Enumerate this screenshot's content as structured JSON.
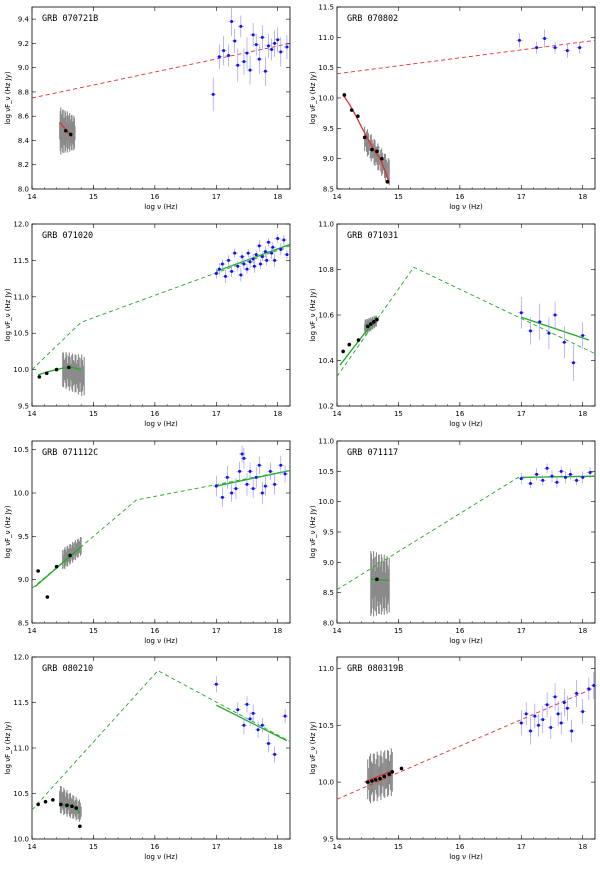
{
  "figure": {
    "xlabel": "log ν (Hz)",
    "ylabel": "log νF_ν (Hz Jy)",
    "colors": {
      "xray": "#1010ee",
      "optical": "#000000",
      "spectrum": "#8a8a8a",
      "fit_red": "#e03030",
      "fit_green": "#22aa22",
      "frame": "#000000"
    }
  },
  "chart_data": [
    {
      "type": "scatter",
      "title": "GRB 070721B",
      "fit_color": "red",
      "xlim": [
        14,
        18.2
      ],
      "ylim": [
        8.0,
        9.5
      ],
      "xticks": [
        14,
        15,
        16,
        17,
        18
      ],
      "xtick_labels": [
        "14",
        "15",
        "16",
        "17",
        "18"
      ],
      "yticks": [
        8.0,
        8.2,
        8.4,
        8.6,
        8.8,
        9.0,
        9.2,
        9.4
      ],
      "ytick_labels": [
        "8.0",
        "8.2",
        "8.4",
        "8.6",
        "8.8",
        "9.0",
        "9.2",
        "9.4"
      ],
      "model": {
        "x": [
          14,
          18.2
        ],
        "y": [
          8.75,
          9.2
        ]
      },
      "fit_segments": [
        {
          "x": [
            14.45,
            14.65
          ],
          "y": [
            8.55,
            8.43
          ]
        }
      ],
      "spectrum": {
        "x": [
          14.45,
          14.7
        ],
        "ylow": [
          8.28,
          8.32
        ],
        "yhigh": [
          8.68,
          8.6
        ]
      },
      "optical": {
        "x": [
          14.55,
          14.63
        ],
        "y": [
          8.48,
          8.45
        ]
      },
      "xray": {
        "x": [
          16.95,
          17.05,
          17.12,
          17.2,
          17.25,
          17.3,
          17.35,
          17.4,
          17.45,
          17.5,
          17.55,
          17.6,
          17.65,
          17.7,
          17.75,
          17.8,
          17.85,
          17.9,
          17.95,
          18.0,
          18.05,
          18.15
        ],
        "y": [
          8.78,
          9.09,
          9.14,
          9.1,
          9.38,
          9.22,
          9.02,
          9.34,
          9.05,
          9.12,
          8.98,
          9.27,
          9.19,
          9.07,
          9.25,
          8.97,
          9.18,
          9.15,
          9.2,
          9.23,
          9.13,
          9.17
        ],
        "err": [
          0.14,
          0.1,
          0.12,
          0.09,
          0.12,
          0.1,
          0.14,
          0.09,
          0.11,
          0.13,
          0.12,
          0.1,
          0.09,
          0.12,
          0.1,
          0.12,
          0.1,
          0.09,
          0.11,
          0.1,
          0.12,
          0.1
        ]
      }
    },
    {
      "type": "scatter",
      "title": "GRB 070802",
      "fit_color": "red",
      "xlim": [
        14,
        18.2
      ],
      "ylim": [
        8.5,
        11.5
      ],
      "xticks": [
        14,
        15,
        16,
        17,
        18
      ],
      "xtick_labels": [
        "14",
        "15",
        "16",
        "17",
        "18"
      ],
      "yticks": [
        8.5,
        9.0,
        9.5,
        10.0,
        10.5,
        11.0,
        11.5
      ],
      "ytick_labels": [
        "8.5",
        "9.0",
        "9.5",
        "10.0",
        "10.5",
        "11.0",
        "11.5"
      ],
      "model": {
        "x": [
          14,
          18.2
        ],
        "y": [
          10.4,
          10.95
        ]
      },
      "fit_segments": [
        {
          "x": [
            14.1,
            14.2,
            14.3,
            14.4,
            14.5,
            14.6,
            14.7,
            14.8,
            14.85
          ],
          "y": [
            10.05,
            9.9,
            9.72,
            9.52,
            9.33,
            9.15,
            9.0,
            8.75,
            8.6
          ]
        }
      ],
      "spectrum": {
        "x": [
          14.45,
          14.85
        ],
        "ylow": [
          9.1,
          8.55
        ],
        "yhigh": [
          9.55,
          9.0
        ]
      },
      "optical": {
        "x": [
          14.12,
          14.24,
          14.34,
          14.45,
          14.57,
          14.65,
          14.73,
          14.82
        ],
        "y": [
          10.05,
          9.8,
          9.7,
          9.35,
          9.15,
          9.12,
          9.0,
          8.62
        ]
      },
      "xray": {
        "x": [
          16.97,
          17.25,
          17.38,
          17.55,
          17.75,
          17.95
        ],
        "y": [
          10.95,
          10.83,
          10.98,
          10.83,
          10.78,
          10.83
        ],
        "err": [
          0.12,
          0.1,
          0.15,
          0.1,
          0.12,
          0.1
        ]
      }
    },
    {
      "type": "scatter",
      "title": "GRB 071020",
      "fit_color": "green",
      "xlim": [
        14,
        18.2
      ],
      "ylim": [
        9.5,
        12.0
      ],
      "xticks": [
        14,
        15,
        16,
        17,
        18
      ],
      "xtick_labels": [
        "14",
        "15",
        "16",
        "17",
        "18"
      ],
      "yticks": [
        9.5,
        10.0,
        10.5,
        11.0,
        11.5,
        12.0
      ],
      "ytick_labels": [
        "9.5",
        "10.0",
        "10.5",
        "11.0",
        "11.5",
        "12.0"
      ],
      "model": {
        "x": [
          14,
          14.8,
          18.2
        ],
        "y": [
          10.0,
          10.65,
          11.7
        ]
      },
      "fit_segments": [
        {
          "x": [
            14.1,
            14.3,
            14.5,
            14.65,
            14.8
          ],
          "y": [
            9.93,
            9.98,
            10.02,
            10.03,
            10.0
          ]
        },
        {
          "x": [
            17.0,
            18.2
          ],
          "y": [
            11.35,
            11.72
          ]
        }
      ],
      "spectrum": {
        "x": [
          14.5,
          14.85
        ],
        "ylow": [
          9.75,
          9.62
        ],
        "yhigh": [
          10.25,
          10.2
        ]
      },
      "optical": {
        "x": [
          14.12,
          14.24,
          14.4,
          14.6
        ],
        "y": [
          9.9,
          9.95,
          10.0,
          10.03
        ]
      },
      "xray": {
        "x": [
          17.0,
          17.05,
          17.1,
          17.15,
          17.2,
          17.25,
          17.3,
          17.35,
          17.4,
          17.42,
          17.45,
          17.5,
          17.52,
          17.55,
          17.6,
          17.62,
          17.65,
          17.7,
          17.72,
          17.75,
          17.8,
          17.82,
          17.85,
          17.9,
          17.92,
          17.95,
          18.0,
          18.05,
          18.1,
          18.15
        ],
        "y": [
          11.32,
          11.38,
          11.45,
          11.28,
          11.5,
          11.35,
          11.6,
          11.42,
          11.3,
          11.55,
          11.45,
          11.38,
          11.6,
          11.48,
          11.52,
          11.42,
          11.58,
          11.7,
          11.45,
          11.55,
          11.62,
          11.5,
          11.75,
          11.6,
          11.68,
          11.5,
          11.8,
          11.65,
          11.78,
          11.58
        ],
        "err": [
          0.07,
          0.08,
          0.06,
          0.09,
          0.07,
          0.08,
          0.06,
          0.07,
          0.09,
          0.06,
          0.08,
          0.07,
          0.06,
          0.08,
          0.07,
          0.09,
          0.06,
          0.08,
          0.07,
          0.06,
          0.08,
          0.07,
          0.06,
          0.08,
          0.07,
          0.09,
          0.06,
          0.08,
          0.07,
          0.06
        ]
      }
    },
    {
      "type": "scatter",
      "title": "GRB 071031",
      "fit_color": "green",
      "xlim": [
        14,
        18.2
      ],
      "ylim": [
        10.2,
        11.0
      ],
      "xticks": [
        14,
        15,
        16,
        17,
        18
      ],
      "xtick_labels": [
        "14",
        "15",
        "16",
        "17",
        "18"
      ],
      "yticks": [
        10.2,
        10.4,
        10.6,
        10.8,
        11.0
      ],
      "ytick_labels": [
        "10.2",
        "10.4",
        "10.6",
        "10.8",
        "11.0"
      ],
      "model": {
        "x": [
          14,
          15.25,
          18.2
        ],
        "y": [
          10.33,
          10.81,
          10.43
        ]
      },
      "fit_segments": [
        {
          "x": [
            14.05,
            14.65
          ],
          "y": [
            10.38,
            10.59
          ]
        },
        {
          "x": [
            17.0,
            18.1
          ],
          "y": [
            10.59,
            10.49
          ]
        }
      ],
      "spectrum": {
        "x": [
          14.45,
          14.65
        ],
        "ylow": [
          10.51,
          10.55
        ],
        "yhigh": [
          10.58,
          10.6
        ]
      },
      "optical": {
        "x": [
          14.1,
          14.2,
          14.35,
          14.5,
          14.55,
          14.6,
          14.65
        ],
        "y": [
          10.44,
          10.47,
          10.49,
          10.55,
          10.56,
          10.57,
          10.58
        ]
      },
      "xray": {
        "x": [
          17.0,
          17.15,
          17.3,
          17.45,
          17.55,
          17.7,
          17.85,
          18.0
        ],
        "y": [
          10.61,
          10.53,
          10.57,
          10.52,
          10.6,
          10.48,
          10.39,
          10.51
        ],
        "err": [
          0.07,
          0.06,
          0.08,
          0.07,
          0.06,
          0.07,
          0.08,
          0.06
        ]
      }
    },
    {
      "type": "scatter",
      "title": "GRB 071112C",
      "fit_color": "green",
      "xlim": [
        14,
        18.2
      ],
      "ylim": [
        8.5,
        10.6
      ],
      "xticks": [
        14,
        15,
        16,
        17,
        18
      ],
      "xtick_labels": [
        "14",
        "15",
        "16",
        "17",
        "18"
      ],
      "yticks": [
        8.5,
        9.0,
        9.5,
        10.0,
        10.5
      ],
      "ytick_labels": [
        "8.5",
        "9.0",
        "9.5",
        "10.0",
        "10.5"
      ],
      "model": {
        "x": [
          14,
          15.7,
          18.2
        ],
        "y": [
          8.9,
          9.92,
          10.26
        ]
      },
      "fit_segments": [
        {
          "x": [
            14.05,
            14.8
          ],
          "y": [
            8.92,
            9.38
          ]
        },
        {
          "x": [
            17.0,
            18.2
          ],
          "y": [
            10.08,
            10.26
          ]
        }
      ],
      "spectrum": {
        "x": [
          14.5,
          14.8
        ],
        "ylow": [
          9.1,
          9.28
        ],
        "yhigh": [
          9.36,
          9.5
        ]
      },
      "optical": {
        "x": [
          14.1,
          14.25,
          14.4,
          14.62
        ],
        "y": [
          9.1,
          8.8,
          9.15,
          9.28
        ]
      },
      "xray": {
        "x": [
          17.0,
          17.1,
          17.18,
          17.25,
          17.32,
          17.38,
          17.42,
          17.45,
          17.5,
          17.55,
          17.6,
          17.65,
          17.7,
          17.75,
          17.8,
          17.88,
          17.95,
          18.05,
          18.12
        ],
        "y": [
          10.08,
          9.95,
          10.18,
          10.0,
          10.05,
          10.25,
          10.45,
          10.4,
          10.1,
          10.25,
          10.05,
          10.18,
          10.32,
          10.0,
          10.08,
          10.25,
          10.1,
          10.32,
          10.22
        ],
        "err": [
          0.12,
          0.11,
          0.13,
          0.1,
          0.12,
          0.11,
          0.1,
          0.12,
          0.13,
          0.1,
          0.11,
          0.12,
          0.1,
          0.13,
          0.11,
          0.1,
          0.12,
          0.11,
          0.1
        ]
      }
    },
    {
      "type": "scatter",
      "title": "GRB 071117",
      "fit_color": "green",
      "xlim": [
        14,
        18.2
      ],
      "ylim": [
        8.0,
        11.0
      ],
      "xticks": [
        14,
        15,
        16,
        17,
        18
      ],
      "xtick_labels": [
        "14",
        "15",
        "16",
        "17",
        "18"
      ],
      "yticks": [
        8.0,
        8.5,
        9.0,
        9.5,
        10.0,
        10.5,
        11.0
      ],
      "ytick_labels": [
        "8.0",
        "8.5",
        "9.0",
        "9.5",
        "10.0",
        "10.5",
        "11.0"
      ],
      "model": {
        "x": [
          14,
          16.95,
          18.2
        ],
        "y": [
          8.55,
          10.4,
          10.42
        ]
      },
      "fit_segments": [
        {
          "x": [
            14.55,
            14.85
          ],
          "y": [
            8.72,
            8.7
          ]
        },
        {
          "x": [
            17.0,
            18.2
          ],
          "y": [
            10.4,
            10.42
          ]
        }
      ],
      "spectrum": {
        "x": [
          14.55,
          14.85
        ],
        "ylow": [
          8.1,
          8.15
        ],
        "yhigh": [
          9.2,
          9.1
        ]
      },
      "optical": {
        "x": [
          14.65
        ],
        "y": [
          8.72
        ]
      },
      "xray": {
        "x": [
          17.0,
          17.15,
          17.25,
          17.35,
          17.42,
          17.5,
          17.58,
          17.65,
          17.72,
          17.8,
          17.9,
          18.0,
          18.12
        ],
        "y": [
          10.38,
          10.3,
          10.45,
          10.35,
          10.55,
          10.42,
          10.32,
          10.5,
          10.4,
          10.45,
          10.35,
          10.4,
          10.48
        ],
        "err": [
          0.09,
          0.08,
          0.1,
          0.09,
          0.08,
          0.1,
          0.09,
          0.08,
          0.1,
          0.09,
          0.08,
          0.1,
          0.09
        ]
      }
    },
    {
      "type": "scatter",
      "title": "GRB 080210",
      "fit_color": "green",
      "xlim": [
        14,
        18.2
      ],
      "ylim": [
        10.0,
        12.0
      ],
      "xticks": [
        14,
        15,
        16,
        17,
        18
      ],
      "xtick_labels": [
        "14",
        "15",
        "16",
        "17",
        "18"
      ],
      "yticks": [
        10.0,
        10.5,
        11.0,
        11.5,
        12.0
      ],
      "ytick_labels": [
        "10.0",
        "10.5",
        "11.0",
        "11.5",
        "12.0"
      ],
      "model": {
        "x": [
          14,
          16.05,
          18.2
        ],
        "y": [
          10.32,
          11.85,
          11.07
        ]
      },
      "fit_segments": [
        {
          "x": [
            14.5,
            14.58,
            14.66,
            14.72,
            14.78
          ],
          "y": [
            10.37,
            10.38,
            10.36,
            10.34,
            10.28
          ]
        },
        {
          "x": [
            17.0,
            18.15
          ],
          "y": [
            11.47,
            11.08
          ]
        }
      ],
      "spectrum": {
        "x": [
          14.45,
          14.8
        ],
        "ylow": [
          10.28,
          10.18
        ],
        "yhigh": [
          10.6,
          10.42
        ]
      },
      "optical": {
        "x": [
          14.1,
          14.22,
          14.34,
          14.47,
          14.57,
          14.65,
          14.72,
          14.78
        ],
        "y": [
          10.38,
          10.41,
          10.43,
          10.38,
          10.37,
          10.36,
          10.34,
          10.14
        ]
      },
      "xray": {
        "x": [
          17.0,
          17.35,
          17.45,
          17.5,
          17.55,
          17.6,
          17.68,
          17.75,
          17.85,
          17.95,
          18.12
        ],
        "y": [
          11.7,
          11.42,
          11.25,
          11.48,
          11.32,
          11.38,
          11.2,
          11.25,
          11.05,
          10.93,
          11.35
        ],
        "err": [
          0.09,
          0.08,
          0.1,
          0.09,
          0.08,
          0.1,
          0.09,
          0.08,
          0.1,
          0.09,
          0.08
        ]
      }
    },
    {
      "type": "scatter",
      "title": "GRB 080319B",
      "fit_color": "red",
      "xlim": [
        14,
        18.2
      ],
      "ylim": [
        9.5,
        11.1
      ],
      "xticks": [
        14,
        15,
        16,
        17,
        18
      ],
      "xtick_labels": [
        "14",
        "15",
        "16",
        "17",
        "18"
      ],
      "yticks": [
        9.5,
        10.0,
        10.5,
        11.0
      ],
      "ytick_labels": [
        "9.5",
        "10.0",
        "10.5",
        "11.0"
      ],
      "model": {
        "x": [
          14,
          18.2
        ],
        "y": [
          9.85,
          10.83
        ]
      },
      "fit_segments": [
        {
          "x": [
            14.45,
            14.9
          ],
          "y": [
            10.0,
            10.1
          ]
        }
      ],
      "spectrum": {
        "x": [
          14.5,
          14.9
        ],
        "ylow": [
          9.8,
          9.88
        ],
        "yhigh": [
          10.25,
          10.3
        ]
      },
      "optical": {
        "x": [
          14.5,
          14.57,
          14.63,
          14.7,
          14.77,
          14.85,
          14.9,
          15.05
        ],
        "y": [
          10.0,
          10.01,
          10.02,
          10.03,
          10.05,
          10.07,
          10.09,
          10.12
        ]
      },
      "xray": {
        "x": [
          17.0,
          17.08,
          17.15,
          17.22,
          17.28,
          17.35,
          17.42,
          17.48,
          17.55,
          17.6,
          17.65,
          17.7,
          17.75,
          17.82,
          17.9,
          18.0,
          18.1,
          18.18
        ],
        "y": [
          10.52,
          10.6,
          10.45,
          10.58,
          10.5,
          10.55,
          10.68,
          10.48,
          10.75,
          10.6,
          10.52,
          10.7,
          10.65,
          10.45,
          10.78,
          10.62,
          10.82,
          10.85
        ],
        "err": [
          0.11,
          0.1,
          0.12,
          0.11,
          0.1,
          0.12,
          0.11,
          0.1,
          0.12,
          0.11,
          0.1,
          0.12,
          0.11,
          0.1,
          0.12,
          0.11,
          0.1,
          0.12
        ]
      }
    }
  ]
}
